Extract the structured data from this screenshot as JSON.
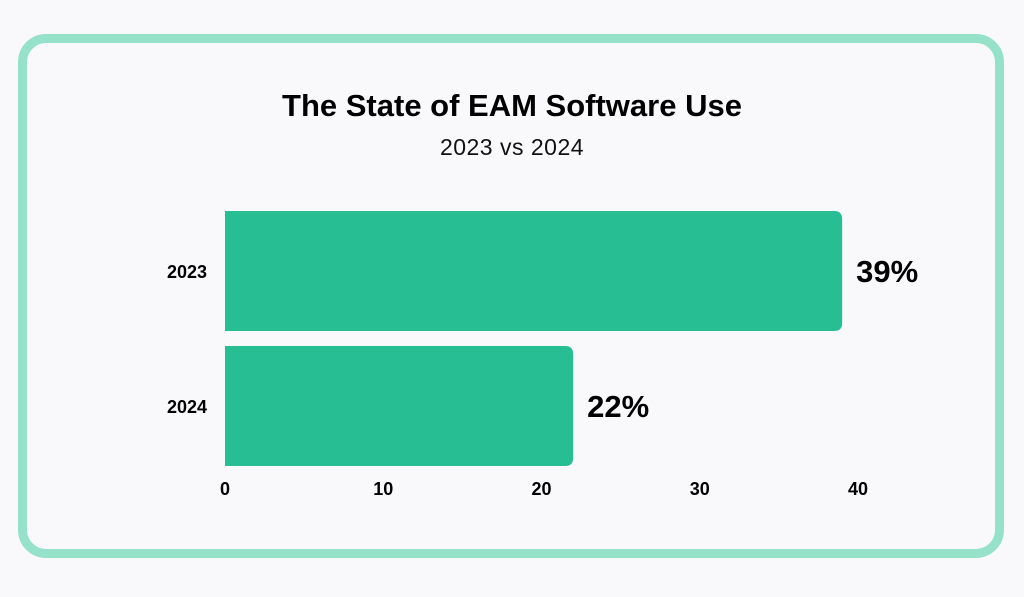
{
  "chart_data": {
    "type": "bar",
    "orientation": "horizontal",
    "title": "The State of EAM Software Use",
    "subtitle": "2023 vs 2024",
    "categories": [
      "2023",
      "2024"
    ],
    "values": [
      39,
      22
    ],
    "data_labels": [
      "39%",
      "22%"
    ],
    "xlabel": "",
    "ylabel": "",
    "xlim": [
      0,
      40
    ],
    "xticks": [
      0,
      10,
      20,
      30,
      40
    ],
    "grid": false,
    "legend": "none",
    "colors": {
      "bar": "#27be94",
      "border": "#95e2c8",
      "background": "#f9f9fb"
    }
  }
}
